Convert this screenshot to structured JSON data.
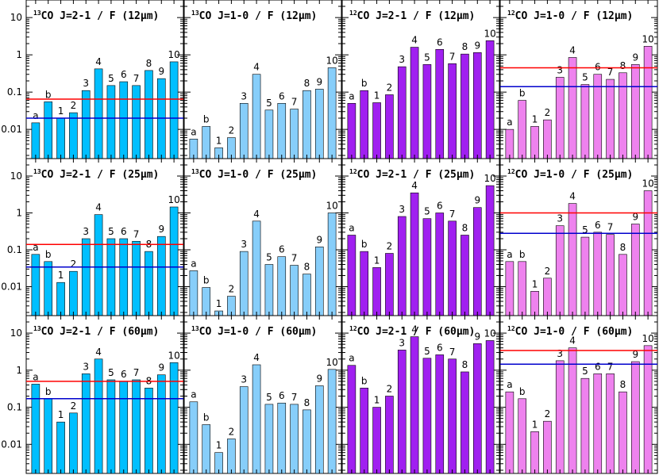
{
  "chart_data": {
    "type": "bar",
    "layout": "grid",
    "yscale": "log",
    "ylim": [
      0.002,
      20
    ],
    "yticks": [
      0.01,
      0.1,
      1,
      10
    ],
    "ytick_labels": [
      "0.01",
      "0.1",
      "1",
      "10"
    ],
    "bar_labels": [
      "a",
      "b",
      "1",
      "2",
      "3",
      "4",
      "5",
      "6",
      "7",
      "8",
      "9",
      "10"
    ],
    "column_colors": [
      "#00bfff",
      "#87cefa",
      "#a020f0",
      "#ee82ee"
    ],
    "reference_line_colors": {
      "upper": "#ff0000",
      "lower": "#0000cd"
    },
    "panels": [
      {
        "title_sup": "13",
        "title_rest": "CO J=2-1 / F (12μm)",
        "values": [
          0.015,
          0.055,
          0.02,
          0.028,
          0.11,
          0.42,
          0.15,
          0.19,
          0.15,
          0.38,
          0.23,
          0.65
        ],
        "ref_upper": 0.065,
        "ref_lower": 0.02
      },
      {
        "title_sup": "13",
        "title_rest": "CO J=1-0 / F (12μm)",
        "values": [
          0.0055,
          0.012,
          0.0032,
          0.006,
          0.05,
          0.3,
          0.033,
          0.05,
          0.035,
          0.11,
          0.12,
          0.45
        ],
        "ref_upper": null,
        "ref_lower": null
      },
      {
        "title_sup": "12",
        "title_rest": "CO J=2-1 / F (12μm)",
        "values": [
          0.05,
          0.11,
          0.052,
          0.085,
          0.48,
          1.6,
          0.55,
          1.4,
          0.58,
          1.05,
          1.15,
          2.4
        ],
        "ref_upper": null,
        "ref_lower": null
      },
      {
        "title_sup": "12",
        "title_rest": "CO J=1-0 / F (12μm)",
        "values": [
          0.01,
          0.06,
          0.012,
          0.018,
          0.25,
          0.85,
          0.16,
          0.3,
          0.22,
          0.33,
          0.55,
          1.7
        ],
        "ref_upper": 0.45,
        "ref_lower": 0.14
      },
      {
        "title_sup": "13",
        "title_rest": "CO J=2-1 / F (25μm)",
        "values": [
          0.075,
          0.048,
          0.013,
          0.026,
          0.2,
          0.9,
          0.2,
          0.2,
          0.17,
          0.09,
          0.23,
          1.45
        ],
        "ref_upper": 0.14,
        "ref_lower": 0.034
      },
      {
        "title_sup": "13",
        "title_rest": "CO J=1-0 / F (25μm)",
        "values": [
          0.027,
          0.0095,
          0.0022,
          0.0055,
          0.09,
          0.6,
          0.04,
          0.065,
          0.038,
          0.022,
          0.12,
          1.0
        ],
        "ref_upper": null,
        "ref_lower": null
      },
      {
        "title_sup": "12",
        "title_rest": "CO J=2-1 / F (25μm)",
        "values": [
          0.25,
          0.09,
          0.033,
          0.08,
          0.8,
          3.5,
          0.7,
          1.0,
          0.6,
          0.25,
          1.4,
          5.5
        ],
        "ref_upper": null,
        "ref_lower": null
      },
      {
        "title_sup": "12",
        "title_rest": "CO J=1-0 / F (25μm)",
        "values": [
          0.048,
          0.048,
          0.0075,
          0.017,
          0.45,
          1.8,
          0.22,
          0.3,
          0.26,
          0.075,
          0.5,
          4.0
        ],
        "ref_upper": 1.0,
        "ref_lower": 0.28
      },
      {
        "title_sup": "13",
        "title_rest": "CO J=2-1 / F (60μm)",
        "values": [
          0.42,
          0.17,
          0.04,
          0.07,
          0.8,
          2.0,
          0.55,
          0.5,
          0.55,
          0.33,
          0.75,
          1.6
        ],
        "ref_upper": 0.5,
        "ref_lower": 0.17
      },
      {
        "title_sup": "13",
        "title_rest": "CO J=1-0 / F (60μm)",
        "values": [
          0.14,
          0.034,
          0.006,
          0.014,
          0.36,
          1.4,
          0.12,
          0.13,
          0.12,
          0.085,
          0.38,
          1.05
        ],
        "ref_upper": null,
        "ref_lower": null
      },
      {
        "title_sup": "12",
        "title_rest": "CO J=2-1 / F (60μm)",
        "values": [
          1.35,
          0.33,
          0.1,
          0.2,
          3.5,
          8.0,
          2.1,
          2.6,
          2.0,
          0.9,
          5.2,
          6.3
        ],
        "ref_upper": null,
        "ref_lower": null
      },
      {
        "title_sup": "12",
        "title_rest": "CO J=1-0 / F (60μm)",
        "values": [
          0.26,
          0.17,
          0.022,
          0.042,
          1.8,
          4.0,
          0.6,
          0.8,
          0.8,
          0.26,
          1.7,
          4.6
        ],
        "ref_upper": 3.4,
        "ref_lower": 1.45
      }
    ]
  }
}
